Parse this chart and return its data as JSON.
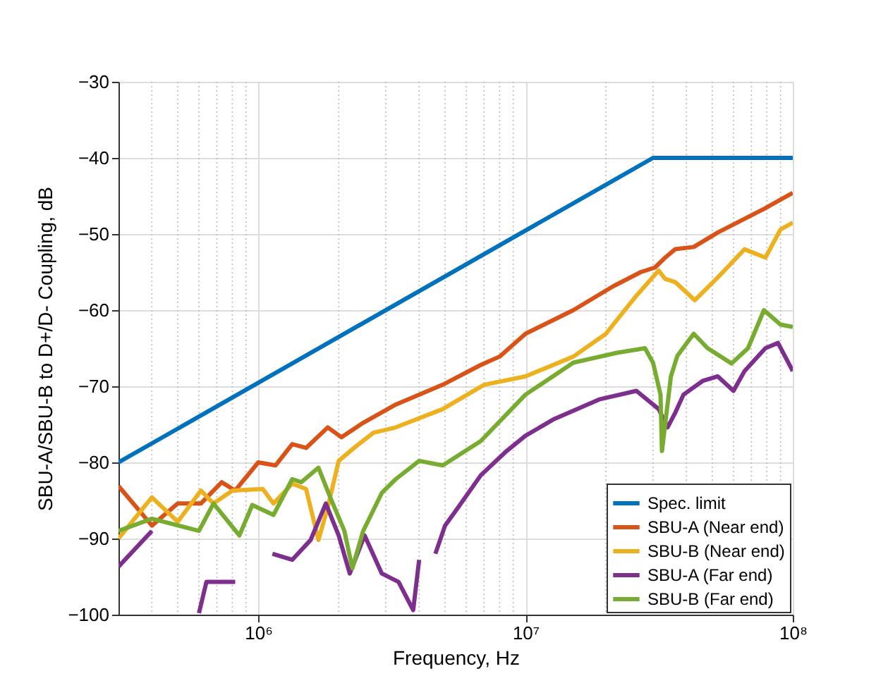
{
  "chart_data": {
    "type": "line",
    "xlabel": "Frequency, Hz",
    "ylabel": "SBU-A/SBU-B to D+/D- Coupling, dB",
    "log": "x",
    "grid": true,
    "legend": "bottom right",
    "line_style": "solid",
    "marker": "none",
    "xlim": [
      300000,
      100000000
    ],
    "ylim": [
      -100,
      -30
    ],
    "yticks": [
      -100,
      -90,
      -80,
      -70,
      -60,
      -50,
      -40,
      -30
    ],
    "xticks": [
      {
        "value": 400000,
        "label": null
      },
      {
        "value": 500000,
        "label": null
      },
      {
        "value": 600000,
        "label": null
      },
      {
        "value": 700000,
        "label": null
      },
      {
        "value": 800000,
        "label": null
      },
      {
        "value": 900000,
        "label": null
      },
      {
        "value": 1000000,
        "label": "10⁶"
      },
      {
        "value": 2000000,
        "label": null
      },
      {
        "value": 3000000,
        "label": null
      },
      {
        "value": 4000000,
        "label": null
      },
      {
        "value": 5000000,
        "label": null
      },
      {
        "value": 6000000,
        "label": null
      },
      {
        "value": 7000000,
        "label": null
      },
      {
        "value": 8000000,
        "label": null
      },
      {
        "value": 9000000,
        "label": null
      },
      {
        "value": 10000000,
        "label": "10⁷"
      },
      {
        "value": 20000000,
        "label": null
      },
      {
        "value": 30000000,
        "label": null
      },
      {
        "value": 40000000,
        "label": null
      },
      {
        "value": 50000000,
        "label": null
      },
      {
        "value": 60000000,
        "label": null
      },
      {
        "value": 70000000,
        "label": null
      },
      {
        "value": 80000000,
        "label": null
      },
      {
        "value": 90000000,
        "label": null
      },
      {
        "value": 100000000,
        "label": "10⁸"
      }
    ],
    "series": [
      {
        "name": "Spec. limit",
        "color": "#0072bd",
        "x": [
          300000,
          30000000,
          100000000
        ],
        "values": [
          -80,
          -40,
          -40
        ]
      },
      {
        "name": "SBU-A (Near end)",
        "color": "#d95319",
        "x": [
          300000,
          400000,
          500000,
          610000,
          730000,
          820000,
          1000000,
          1160000,
          1340000,
          1510000,
          1820000,
          2050000,
          2470000,
          3270000,
          4900000,
          6800000,
          8000000,
          10000000,
          15100000,
          21200000,
          27000000,
          30500000,
          33300000,
          36300000,
          42600000,
          52400000,
          78000000,
          100000000
        ],
        "values": [
          -83.1,
          -88.3,
          -85.4,
          -85.4,
          -82.6,
          -83.7,
          -80,
          -80.4,
          -77.6,
          -78.1,
          -75.4,
          -76.7,
          -74.8,
          -72.4,
          -69.8,
          -67.2,
          -66.1,
          -63.1,
          -60,
          -56.9,
          -55,
          -54.4,
          -53.1,
          -52,
          -51.7,
          -49.8,
          -46.7,
          -44.6
        ]
      },
      {
        "name": "SBU-B (Near end)",
        "color": "#edb120",
        "x": [
          300000,
          400000,
          500000,
          610000,
          680000,
          800000,
          1040000,
          1140000,
          1340000,
          1510000,
          1680000,
          1820000,
          2000000,
          2300000,
          2700000,
          3270000,
          4900000,
          7000000,
          10000000,
          15100000,
          20000000,
          26000000,
          31500000,
          33300000,
          36300000,
          43000000,
          52400000,
          66000000,
          79000000,
          90000000,
          100000000
        ],
        "values": [
          -90,
          -84.6,
          -87.8,
          -83.7,
          -85.4,
          -83.7,
          -83.5,
          -85.4,
          -82.8,
          -83.5,
          -90.2,
          -85.9,
          -79.8,
          -78,
          -76.1,
          -75.4,
          -73,
          -69.8,
          -68.7,
          -66.1,
          -63.1,
          -58.1,
          -54.8,
          -55.9,
          -56.3,
          -58.7,
          -55.7,
          -52,
          -53.1,
          -49.4,
          -48.5
        ]
      },
      {
        "name": "SBU-A (Far end)",
        "color": "#7e2f8e",
        "x": [
          300000,
          400000,
          470000,
          600000,
          640000,
          820000,
          880000,
          1000000,
          1130000,
          1340000,
          1570000,
          1790000,
          2000000,
          2200000,
          2500000,
          2900000,
          3350000,
          3800000,
          4000000,
          4300000,
          4600000,
          5000000,
          5600000,
          6800000,
          8500000,
          10000000,
          12800000,
          19000000,
          26000000,
          31500000,
          34000000,
          36300000,
          39000000,
          46000000,
          52400000,
          60000000,
          66000000,
          79000000,
          88000000,
          100000000
        ],
        "values": [
          -93.7,
          -89,
          null,
          -99.8,
          -95.7,
          -95.7,
          null,
          null,
          -92,
          -92.8,
          -90.2,
          -85.4,
          -89.6,
          -94.6,
          -89.6,
          -94.6,
          -95.7,
          -99.4,
          -92.8,
          null,
          -92,
          -88.3,
          -85.9,
          -81.7,
          -78.5,
          -76.5,
          -74.3,
          -71.7,
          -70.6,
          -73,
          -75.4,
          -73.5,
          -71.1,
          -69.3,
          -68.7,
          -70.6,
          -68,
          -65,
          -64.3,
          -68
        ]
      },
      {
        "name": "SBU-B (Far end)",
        "color": "#77ac30",
        "x": [
          300000,
          400000,
          600000,
          680000,
          850000,
          950000,
          1140000,
          1340000,
          1450000,
          1680000,
          1860000,
          2100000,
          2250000,
          2470000,
          2900000,
          3270000,
          4000000,
          4900000,
          6800000,
          10000000,
          15100000,
          22000000,
          28000000,
          30000000,
          32000000,
          32400000,
          35000000,
          37000000,
          42600000,
          48000000,
          59000000,
          68000000,
          78000000,
          90000000,
          100000000
        ],
        "values": [
          -89,
          -87.4,
          -89,
          -85.4,
          -89.6,
          -85.6,
          -86.9,
          -82.2,
          -82.6,
          -80.7,
          -84.6,
          -89,
          -93.9,
          -89,
          -84,
          -82.2,
          -79.8,
          -80.4,
          -77.2,
          -71.1,
          -66.9,
          -65.6,
          -65,
          -66.9,
          -71.1,
          -78.5,
          -68.7,
          -66,
          -63.1,
          -65,
          -67,
          -65,
          -60,
          -61.9,
          -62.2
        ]
      }
    ]
  }
}
